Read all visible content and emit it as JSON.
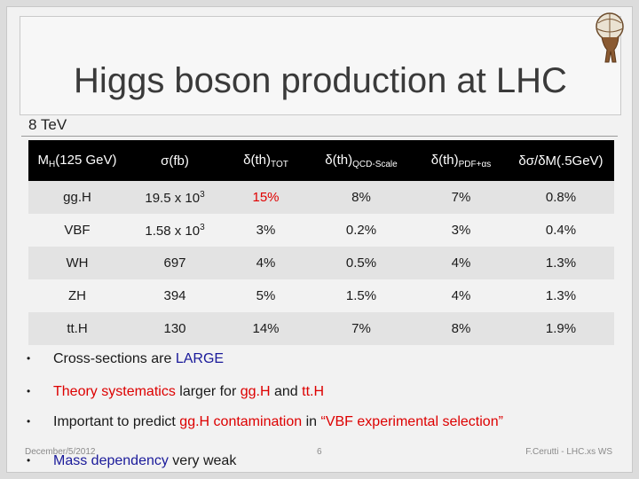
{
  "title": "Higgs boson production at LHC",
  "section": "8 TeV",
  "table": {
    "headers": {
      "mass_main": "M",
      "mass_sub": "H",
      "mass_rest": "(125 GeV)",
      "sigma": "σ(fb)",
      "tot_main": "δ(th)",
      "tot_sub": "TOT",
      "qcd_main": "δ(th)",
      "qcd_sub": "QCD-Scale",
      "pdf_main": "δ(th)",
      "pdf_sub": "PDF+αs",
      "dm": "δσ/δM(.5GeV)"
    },
    "rows": [
      {
        "process": "gg.H",
        "sigma": "19.5 x 10",
        "sigma_exp": "3",
        "tot": "15%",
        "qcd": "8%",
        "pdf": "7%",
        "dm": "0.8%"
      },
      {
        "process": "VBF",
        "sigma": "1.58 x 10",
        "sigma_exp": "3",
        "tot": "3%",
        "qcd": "0.2%",
        "pdf": "3%",
        "dm": "0.4%"
      },
      {
        "process": "WH",
        "sigma": "697",
        "sigma_exp": "",
        "tot": "4%",
        "qcd": "0.5%",
        "pdf": "4%",
        "dm": "1.3%"
      },
      {
        "process": "ZH",
        "sigma": "394",
        "sigma_exp": "",
        "tot": "5%",
        "qcd": "1.5%",
        "pdf": "4%",
        "dm": "1.3%"
      },
      {
        "process": "tt.H",
        "sigma": "130",
        "sigma_exp": "",
        "tot": "14%",
        "qcd": "7%",
        "pdf": "8%",
        "dm": "1.9%"
      }
    ]
  },
  "bullets": {
    "b1_pre": "Cross-sections are ",
    "b1_hl": "LARGE",
    "b2_hl": "Theory systematics",
    "b2_mid": " larger for ",
    "b2_hl2": "gg.H",
    "b2_mid2": " and ",
    "b2_hl3": "tt.H",
    "b3_pre": "Important to predict ",
    "b3_hl": "gg.H contamination",
    "b3_mid": " in ",
    "b3_hl2": "“VBF experimental selection”",
    "b4_hl": "Mass dependency",
    "b4_post": " very weak"
  },
  "footer": {
    "date": "December/5/2012",
    "page": "6",
    "author": "F.Cerutti - LHC.xs WS"
  },
  "colors": {
    "highlight_red": "#e00000",
    "highlight_blue": "#1a1a9a",
    "header_bg": "#000000"
  }
}
